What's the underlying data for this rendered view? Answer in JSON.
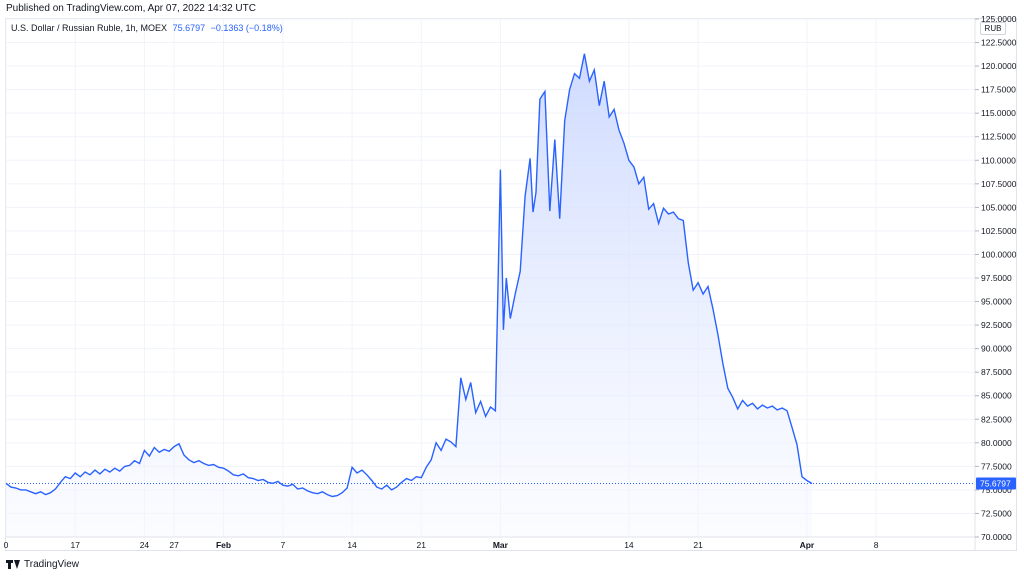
{
  "header": {
    "published": "Published on TradingView.com, Apr 07, 2022 14:32 UTC"
  },
  "legend": {
    "symbol": "U.S. Dollar / Russian Ruble, 1h, MOEX",
    "last": "75.6797",
    "change": "−0.1363 (−0.18%)"
  },
  "currency": "RUB",
  "footer": {
    "brand": "TradingView"
  },
  "colors": {
    "line": "#2962ff",
    "fill_top": "#c9d6ff",
    "fill_bottom": "#f4f7ff",
    "last_label_bg": "#2962ff"
  },
  "chart_data": {
    "type": "area",
    "x_axis": {
      "range_days": [
        0,
        98
      ],
      "ticks": [
        {
          "day": 0,
          "label": "0"
        },
        {
          "day": 7,
          "label": "17"
        },
        {
          "day": 14,
          "label": "24"
        },
        {
          "day": 17,
          "label": "27"
        },
        {
          "day": 22,
          "label": "Feb"
        },
        {
          "day": 28,
          "label": "7"
        },
        {
          "day": 35,
          "label": "14"
        },
        {
          "day": 42,
          "label": "21"
        },
        {
          "day": 50,
          "label": "Mar"
        },
        {
          "day": 63,
          "label": "14"
        },
        {
          "day": 70,
          "label": "21"
        },
        {
          "day": 81,
          "label": "Apr"
        },
        {
          "day": 88,
          "label": "8"
        }
      ]
    },
    "y_axis": {
      "range": [
        70,
        125
      ],
      "tick_step": 2.5,
      "tick_decimals": 4
    },
    "last_value": 75.6797,
    "series": [
      [
        0.0,
        75.7
      ],
      [
        0.5,
        75.3
      ],
      [
        1.0,
        75.2
      ],
      [
        1.5,
        75.0
      ],
      [
        2.0,
        75.0
      ],
      [
        2.5,
        74.8
      ],
      [
        3.0,
        74.6
      ],
      [
        3.5,
        74.8
      ],
      [
        4.0,
        74.5
      ],
      [
        4.5,
        74.7
      ],
      [
        5.0,
        75.1
      ],
      [
        5.5,
        75.8
      ],
      [
        6.0,
        76.4
      ],
      [
        6.5,
        76.2
      ],
      [
        7.0,
        76.8
      ],
      [
        7.5,
        76.4
      ],
      [
        8.0,
        76.9
      ],
      [
        8.5,
        76.6
      ],
      [
        9.0,
        77.1
      ],
      [
        9.5,
        76.7
      ],
      [
        10.0,
        77.2
      ],
      [
        10.5,
        76.9
      ],
      [
        11.0,
        77.3
      ],
      [
        11.5,
        77.0
      ],
      [
        12.0,
        77.5
      ],
      [
        12.5,
        77.6
      ],
      [
        13.0,
        78.1
      ],
      [
        13.5,
        77.8
      ],
      [
        14.0,
        79.2
      ],
      [
        14.5,
        78.6
      ],
      [
        15.0,
        79.5
      ],
      [
        15.5,
        79.0
      ],
      [
        16.0,
        79.3
      ],
      [
        16.5,
        79.1
      ],
      [
        17.0,
        79.6
      ],
      [
        17.5,
        79.9
      ],
      [
        18.0,
        78.7
      ],
      [
        18.5,
        78.2
      ],
      [
        19.0,
        77.9
      ],
      [
        19.5,
        78.1
      ],
      [
        20.0,
        77.8
      ],
      [
        20.5,
        77.6
      ],
      [
        21.0,
        77.7
      ],
      [
        21.5,
        77.4
      ],
      [
        22.0,
        77.3
      ],
      [
        22.5,
        77.0
      ],
      [
        23.0,
        76.6
      ],
      [
        23.5,
        76.5
      ],
      [
        24.0,
        76.7
      ],
      [
        24.5,
        76.3
      ],
      [
        25.0,
        76.2
      ],
      [
        25.5,
        76.0
      ],
      [
        26.0,
        76.1
      ],
      [
        26.5,
        75.8
      ],
      [
        27.0,
        75.7
      ],
      [
        27.5,
        75.9
      ],
      [
        28.0,
        75.5
      ],
      [
        28.5,
        75.4
      ],
      [
        29.0,
        75.6
      ],
      [
        29.5,
        75.1
      ],
      [
        30.0,
        75.2
      ],
      [
        30.5,
        74.9
      ],
      [
        31.0,
        74.7
      ],
      [
        31.5,
        74.6
      ],
      [
        32.0,
        74.8
      ],
      [
        32.5,
        74.5
      ],
      [
        33.0,
        74.3
      ],
      [
        33.5,
        74.4
      ],
      [
        34.0,
        74.7
      ],
      [
        34.5,
        75.2
      ],
      [
        35.0,
        77.4
      ],
      [
        35.5,
        76.8
      ],
      [
        36.0,
        77.1
      ],
      [
        36.5,
        76.6
      ],
      [
        37.0,
        76.0
      ],
      [
        37.5,
        75.3
      ],
      [
        38.0,
        75.1
      ],
      [
        38.5,
        75.5
      ],
      [
        39.0,
        75.0
      ],
      [
        39.5,
        75.3
      ],
      [
        40.0,
        75.8
      ],
      [
        40.5,
        76.2
      ],
      [
        41.0,
        76.0
      ],
      [
        41.5,
        76.4
      ],
      [
        42.0,
        76.3
      ],
      [
        42.5,
        77.4
      ],
      [
        43.0,
        78.2
      ],
      [
        43.5,
        80.0
      ],
      [
        44.0,
        79.2
      ],
      [
        44.5,
        80.4
      ],
      [
        45.0,
        80.1
      ],
      [
        45.5,
        79.6
      ],
      [
        46.0,
        86.9
      ],
      [
        46.5,
        84.6
      ],
      [
        47.0,
        86.4
      ],
      [
        47.5,
        83.2
      ],
      [
        48.0,
        84.4
      ],
      [
        48.5,
        82.8
      ],
      [
        49.0,
        83.8
      ],
      [
        49.5,
        83.4
      ],
      [
        50.0,
        109.0
      ],
      [
        50.3,
        92.0
      ],
      [
        50.6,
        97.5
      ],
      [
        51.0,
        93.2
      ],
      [
        51.5,
        95.8
      ],
      [
        52.0,
        98.2
      ],
      [
        52.5,
        106.2
      ],
      [
        53.0,
        110.2
      ],
      [
        53.3,
        104.5
      ],
      [
        53.6,
        106.6
      ],
      [
        54.0,
        116.5
      ],
      [
        54.5,
        117.3
      ],
      [
        55.0,
        104.6
      ],
      [
        55.5,
        112.2
      ],
      [
        56.0,
        103.8
      ],
      [
        56.5,
        114.2
      ],
      [
        57.0,
        117.5
      ],
      [
        57.5,
        119.2
      ],
      [
        58.0,
        118.7
      ],
      [
        58.5,
        121.3
      ],
      [
        59.0,
        118.4
      ],
      [
        59.5,
        119.6
      ],
      [
        60.0,
        115.8
      ],
      [
        60.5,
        118.4
      ],
      [
        61.0,
        114.6
      ],
      [
        61.5,
        115.4
      ],
      [
        62.0,
        113.2
      ],
      [
        62.5,
        111.8
      ],
      [
        63.0,
        110.0
      ],
      [
        63.5,
        109.3
      ],
      [
        64.0,
        107.5
      ],
      [
        64.5,
        108.2
      ],
      [
        65.0,
        104.8
      ],
      [
        65.5,
        105.4
      ],
      [
        66.0,
        103.3
      ],
      [
        66.5,
        104.9
      ],
      [
        67.0,
        104.3
      ],
      [
        67.5,
        104.5
      ],
      [
        68.0,
        103.8
      ],
      [
        68.5,
        103.6
      ],
      [
        69.0,
        99.1
      ],
      [
        69.5,
        96.2
      ],
      [
        70.0,
        97.0
      ],
      [
        70.5,
        95.8
      ],
      [
        71.0,
        96.6
      ],
      [
        71.5,
        94.2
      ],
      [
        72.0,
        91.5
      ],
      [
        72.5,
        88.4
      ],
      [
        73.0,
        85.8
      ],
      [
        73.5,
        84.8
      ],
      [
        74.0,
        83.6
      ],
      [
        74.5,
        84.5
      ],
      [
        75.0,
        83.9
      ],
      [
        75.5,
        84.2
      ],
      [
        76.0,
        83.6
      ],
      [
        76.5,
        84.0
      ],
      [
        77.0,
        83.7
      ],
      [
        77.5,
        83.9
      ],
      [
        78.0,
        83.5
      ],
      [
        78.5,
        83.7
      ],
      [
        79.0,
        83.4
      ],
      [
        79.5,
        81.6
      ],
      [
        80.0,
        79.8
      ],
      [
        80.5,
        76.4
      ],
      [
        81.0,
        76.0
      ],
      [
        81.5,
        75.68
      ]
    ]
  }
}
